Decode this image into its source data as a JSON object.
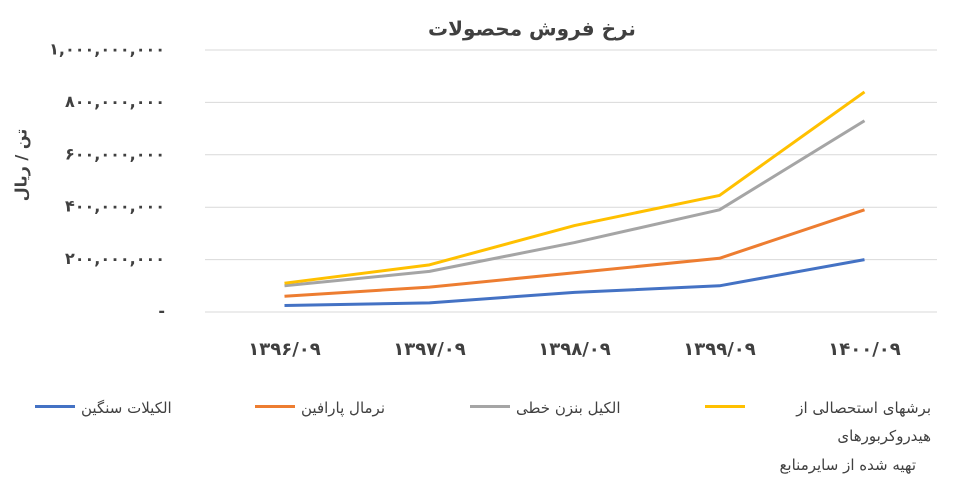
{
  "chart_data": {
    "type": "line",
    "title": "نرخ فروش محصولات",
    "y_label": "تن / ریال",
    "categories": [
      "۱۳۹۶/۰۹",
      "۱۳۹۷/۰۹",
      "۱۳۹۸/۰۹",
      "۱۳۹۹/۰۹",
      "۱۴۰۰/۰۹"
    ],
    "series": [
      {
        "name": "الکیلات سنگین",
        "color": "#4472c4",
        "values": [
          25000000,
          35000000,
          75000000,
          100000000,
          200000000
        ]
      },
      {
        "name": "نرمال پارافین",
        "color": "#ed7d31",
        "values": [
          60000000,
          95000000,
          150000000,
          205000000,
          390000000
        ]
      },
      {
        "name": "الکیل بنزن خطی",
        "color": "#a5a5a5",
        "values": [
          100000000,
          155000000,
          265000000,
          390000000,
          730000000
        ]
      },
      {
        "name": "برشهای استحصالی از هیدروکربورهای",
        "color": "#ffc000",
        "values": [
          110000000,
          180000000,
          330000000,
          445000000,
          840000000
        ]
      }
    ],
    "ylim": [
      0,
      1000000000
    ],
    "yticks": [
      {
        "value": 0,
        "label": "-"
      },
      {
        "value": 200000000,
        "label": "۲۰۰,۰۰۰,۰۰۰"
      },
      {
        "value": 400000000,
        "label": "۴۰۰,۰۰۰,۰۰۰"
      },
      {
        "value": 600000000,
        "label": "۶۰۰,۰۰۰,۰۰۰"
      },
      {
        "value": 800000000,
        "label": "۸۰۰,۰۰۰,۰۰۰"
      },
      {
        "value": 1000000000,
        "label": "۱,۰۰۰,۰۰۰,۰۰۰"
      }
    ],
    "grid": true,
    "source": "تهیه شده از سایرمنابع"
  }
}
